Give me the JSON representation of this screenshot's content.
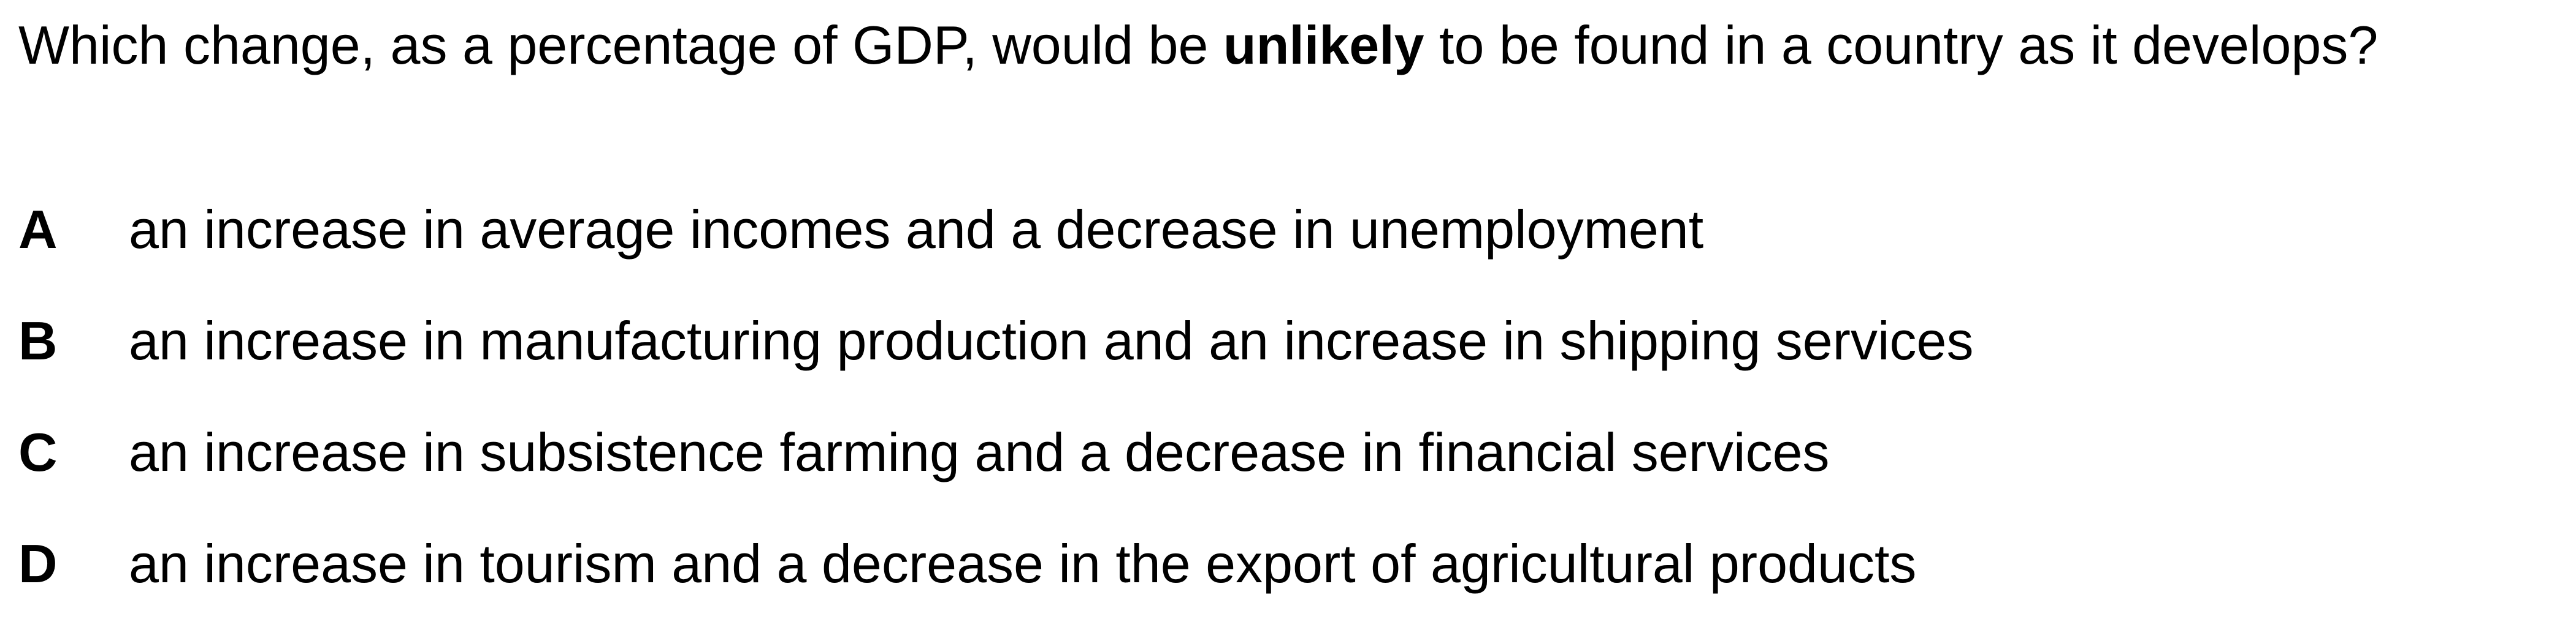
{
  "question": {
    "text_before": "Which change, as a percentage of GDP, would be ",
    "emphasis": "unlikely",
    "text_after": " to be found in a country as it develops?"
  },
  "options": [
    {
      "letter": "A",
      "text": "an increase in average incomes and a decrease in unemployment"
    },
    {
      "letter": "B",
      "text": "an increase in manufacturing production and an increase in shipping services"
    },
    {
      "letter": "C",
      "text": "an increase in subsistence farming and a decrease in financial services"
    },
    {
      "letter": "D",
      "text": "an increase in tourism and a decrease in the export of agricultural products"
    }
  ]
}
